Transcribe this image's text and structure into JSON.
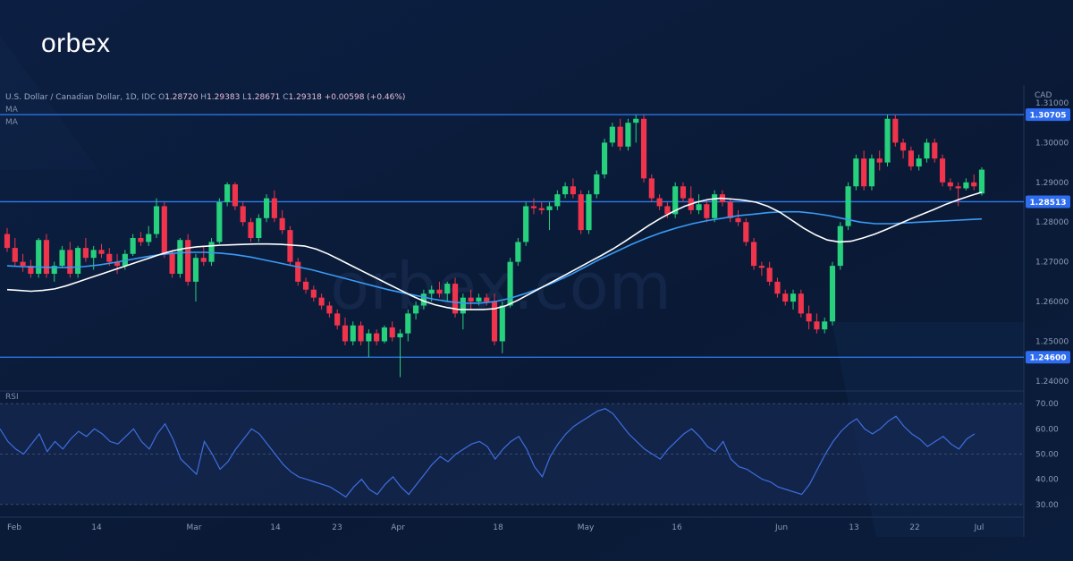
{
  "brand": {
    "logo_text": "orbex",
    "watermark": "orbex.com"
  },
  "header": {
    "symbol": "U.S. Dollar / Canadian Dollar, 1D, IDC",
    "open_label": "O",
    "open": "1.28720",
    "high_label": "H",
    "high": "1.29383",
    "low_label": "L",
    "low": "1.28671",
    "close_label": "C",
    "close": "1.29318",
    "change": "+0.00598 (+0.46%)"
  },
  "indicators": {
    "ma1_label": "MA",
    "ma2_label": "MA",
    "rsi_label": "RSI"
  },
  "colors": {
    "background": "#0b1c3a",
    "bull": "#26d07c",
    "bear": "#f0344c",
    "ma_fast": "#ffffff",
    "ma_slow": "#3a9bf4",
    "level_line": "#2f7cf0",
    "rsi_line": "#3d6fe0"
  },
  "chart_data": [
    {
      "type": "candlestick",
      "currency": "CAD",
      "ylim": [
        1.2375,
        1.3145
      ],
      "y_ticks": [
        "1.31000",
        "1.30000",
        "1.29000",
        "1.28000",
        "1.27000",
        "1.26000",
        "1.25000",
        "1.24000"
      ],
      "x_ticks": [
        "Feb",
        "14",
        "Mar",
        "14",
        "23",
        "Apr",
        "18",
        "May",
        "16",
        "Jun",
        "13",
        "22",
        "Jul"
      ],
      "levels": [
        {
          "value": 1.30705,
          "label": "1.30705"
        },
        {
          "value": 1.28513,
          "label": "1.28513"
        },
        {
          "value": 1.246,
          "label": "1.24600"
        }
      ],
      "candles": [
        [
          1.277,
          1.2785,
          1.2725,
          1.2735
        ],
        [
          1.2735,
          1.276,
          1.269,
          1.27
        ],
        [
          1.27,
          1.272,
          1.2675,
          1.269
        ],
        [
          1.269,
          1.2705,
          1.266,
          1.267
        ],
        [
          1.267,
          1.276,
          1.266,
          1.2755
        ],
        [
          1.2755,
          1.277,
          1.266,
          1.267
        ],
        [
          1.267,
          1.27,
          1.265,
          1.269
        ],
        [
          1.269,
          1.274,
          1.2685,
          1.273
        ],
        [
          1.273,
          1.275,
          1.266,
          1.267
        ],
        [
          1.267,
          1.274,
          1.266,
          1.2735
        ],
        [
          1.2735,
          1.276,
          1.27,
          1.271
        ],
        [
          1.271,
          1.274,
          1.268,
          1.273
        ],
        [
          1.273,
          1.2745,
          1.271,
          1.272
        ],
        [
          1.272,
          1.2735,
          1.269,
          1.27
        ],
        [
          1.27,
          1.272,
          1.267,
          1.269
        ],
        [
          1.269,
          1.273,
          1.268,
          1.272
        ],
        [
          1.272,
          1.277,
          1.2715,
          1.276
        ],
        [
          1.276,
          1.2775,
          1.274,
          1.275
        ],
        [
          1.275,
          1.279,
          1.274,
          1.277
        ],
        [
          1.277,
          1.286,
          1.276,
          1.284
        ],
        [
          1.284,
          1.285,
          1.271,
          1.272
        ],
        [
          1.272,
          1.273,
          1.266,
          1.267
        ],
        [
          1.267,
          1.276,
          1.266,
          1.2755
        ],
        [
          1.2755,
          1.277,
          1.264,
          1.265
        ],
        [
          1.265,
          1.272,
          1.26,
          1.271
        ],
        [
          1.271,
          1.274,
          1.269,
          1.27
        ],
        [
          1.27,
          1.276,
          1.269,
          1.275
        ],
        [
          1.275,
          1.286,
          1.2745,
          1.285
        ],
        [
          1.285,
          1.29,
          1.284,
          1.2895
        ],
        [
          1.2895,
          1.29,
          1.283,
          1.284
        ],
        [
          1.284,
          1.285,
          1.279,
          1.28
        ],
        [
          1.28,
          1.281,
          1.275,
          1.276
        ],
        [
          1.276,
          1.282,
          1.275,
          1.281
        ],
        [
          1.281,
          1.287,
          1.28,
          1.286
        ],
        [
          1.286,
          1.288,
          1.28,
          1.281
        ],
        [
          1.281,
          1.283,
          1.277,
          1.278
        ],
        [
          1.278,
          1.279,
          1.269,
          1.27
        ],
        [
          1.27,
          1.271,
          1.264,
          1.265
        ],
        [
          1.265,
          1.266,
          1.262,
          1.263
        ],
        [
          1.263,
          1.264,
          1.26,
          1.261
        ],
        [
          1.261,
          1.262,
          1.258,
          1.259
        ],
        [
          1.259,
          1.26,
          1.256,
          1.257
        ],
        [
          1.257,
          1.258,
          1.253,
          1.254
        ],
        [
          1.254,
          1.256,
          1.249,
          1.25
        ],
        [
          1.25,
          1.255,
          1.249,
          1.254
        ],
        [
          1.254,
          1.255,
          1.249,
          1.25
        ],
        [
          1.25,
          1.253,
          1.246,
          1.252
        ],
        [
          1.252,
          1.253,
          1.249,
          1.25
        ],
        [
          1.25,
          1.254,
          1.2495,
          1.2535
        ],
        [
          1.2535,
          1.255,
          1.25,
          1.251
        ],
        [
          1.251,
          1.253,
          1.241,
          1.252
        ],
        [
          1.252,
          1.258,
          1.25,
          1.257
        ],
        [
          1.257,
          1.26,
          1.2555,
          1.259
        ],
        [
          1.259,
          1.263,
          1.258,
          1.262
        ],
        [
          1.262,
          1.264,
          1.26,
          1.263
        ],
        [
          1.263,
          1.265,
          1.261,
          1.262
        ],
        [
          1.262,
          1.265,
          1.26,
          1.2645
        ],
        [
          1.2645,
          1.266,
          1.256,
          1.257
        ],
        [
          1.257,
          1.262,
          1.253,
          1.261
        ],
        [
          1.261,
          1.263,
          1.258,
          1.26
        ],
        [
          1.26,
          1.262,
          1.259,
          1.261
        ],
        [
          1.261,
          1.262,
          1.259,
          1.26
        ],
        [
          1.26,
          1.262,
          1.249,
          1.25
        ],
        [
          1.25,
          1.26,
          1.247,
          1.259
        ],
        [
          1.259,
          1.271,
          1.2585,
          1.27
        ],
        [
          1.27,
          1.276,
          1.269,
          1.275
        ],
        [
          1.275,
          1.285,
          1.274,
          1.284
        ],
        [
          1.284,
          1.286,
          1.282,
          1.2835
        ],
        [
          1.2835,
          1.285,
          1.282,
          1.283
        ],
        [
          1.283,
          1.285,
          1.278,
          1.284
        ],
        [
          1.284,
          1.288,
          1.283,
          1.287
        ],
        [
          1.287,
          1.29,
          1.286,
          1.289
        ],
        [
          1.289,
          1.291,
          1.286,
          1.287
        ],
        [
          1.287,
          1.288,
          1.277,
          1.278
        ],
        [
          1.278,
          1.288,
          1.277,
          1.287
        ],
        [
          1.287,
          1.293,
          1.286,
          1.292
        ],
        [
          1.292,
          1.301,
          1.291,
          1.3
        ],
        [
          1.3,
          1.305,
          1.299,
          1.304
        ],
        [
          1.304,
          1.306,
          1.298,
          1.299
        ],
        [
          1.299,
          1.306,
          1.298,
          1.305
        ],
        [
          1.305,
          1.307,
          1.3,
          1.306
        ],
        [
          1.306,
          1.307,
          1.29,
          1.291
        ],
        [
          1.291,
          1.292,
          1.285,
          1.286
        ],
        [
          1.286,
          1.287,
          1.283,
          1.284
        ],
        [
          1.284,
          1.285,
          1.281,
          1.282
        ],
        [
          1.282,
          1.29,
          1.281,
          1.289
        ],
        [
          1.289,
          1.29,
          1.285,
          1.286
        ],
        [
          1.286,
          1.289,
          1.282,
          1.283
        ],
        [
          1.283,
          1.287,
          1.282,
          1.2845
        ],
        [
          1.2845,
          1.2855,
          1.28,
          1.281
        ],
        [
          1.281,
          1.288,
          1.28,
          1.287
        ],
        [
          1.287,
          1.288,
          1.284,
          1.285
        ],
        [
          1.285,
          1.286,
          1.28,
          1.281
        ],
        [
          1.281,
          1.283,
          1.279,
          1.28
        ],
        [
          1.28,
          1.281,
          1.274,
          1.275
        ],
        [
          1.275,
          1.276,
          1.268,
          1.269
        ],
        [
          1.269,
          1.27,
          1.2665,
          1.2685
        ],
        [
          1.2685,
          1.27,
          1.264,
          1.265
        ],
        [
          1.265,
          1.266,
          1.261,
          1.262
        ],
        [
          1.262,
          1.263,
          1.259,
          1.26
        ],
        [
          1.26,
          1.263,
          1.258,
          1.262
        ],
        [
          1.262,
          1.263,
          1.256,
          1.257
        ],
        [
          1.257,
          1.259,
          1.253,
          1.255
        ],
        [
          1.255,
          1.257,
          1.252,
          1.253
        ],
        [
          1.253,
          1.256,
          1.252,
          1.255
        ],
        [
          1.255,
          1.27,
          1.254,
          1.269
        ],
        [
          1.269,
          1.28,
          1.268,
          1.279
        ],
        [
          1.279,
          1.29,
          1.278,
          1.289
        ],
        [
          1.289,
          1.297,
          1.288,
          1.296
        ],
        [
          1.296,
          1.298,
          1.288,
          1.289
        ],
        [
          1.289,
          1.297,
          1.288,
          1.296
        ],
        [
          1.296,
          1.298,
          1.293,
          1.295
        ],
        [
          1.295,
          1.307,
          1.294,
          1.306
        ],
        [
          1.306,
          1.307,
          1.299,
          1.3
        ],
        [
          1.3,
          1.301,
          1.296,
          1.298
        ],
        [
          1.298,
          1.299,
          1.293,
          1.294
        ],
        [
          1.294,
          1.297,
          1.293,
          1.296
        ],
        [
          1.296,
          1.301,
          1.295,
          1.3
        ],
        [
          1.3,
          1.301,
          1.295,
          1.296
        ],
        [
          1.296,
          1.297,
          1.289,
          1.29
        ],
        [
          1.29,
          1.291,
          1.288,
          1.289
        ],
        [
          1.289,
          1.29,
          1.284,
          1.2885
        ],
        [
          1.2885,
          1.291,
          1.288,
          1.29
        ],
        [
          1.29,
          1.292,
          1.288,
          1.289
        ],
        [
          1.2872,
          1.2938,
          1.2867,
          1.2932
        ]
      ],
      "ma_fast": [
        1.263,
        1.2628,
        1.2626,
        1.2628,
        1.2632,
        1.264,
        1.265,
        1.266,
        1.267,
        1.268,
        1.269,
        1.27,
        1.271,
        1.272,
        1.2728,
        1.2734,
        1.2738,
        1.274,
        1.2742,
        1.2743,
        1.2744,
        1.2745,
        1.2745,
        1.2744,
        1.2742,
        1.274,
        1.2732,
        1.272,
        1.2705,
        1.269,
        1.2675,
        1.266,
        1.2645,
        1.263,
        1.2615,
        1.2602,
        1.2592,
        1.2585,
        1.258,
        1.258,
        1.258,
        1.2582,
        1.259,
        1.2604,
        1.262,
        1.2636,
        1.2652,
        1.2668,
        1.2684,
        1.27,
        1.2716,
        1.2733,
        1.2752,
        1.2772,
        1.2792,
        1.281,
        1.2826,
        1.284,
        1.285,
        1.2857,
        1.286,
        1.2858,
        1.2855,
        1.285,
        1.284,
        1.2825,
        1.2805,
        1.2785,
        1.2768,
        1.2755,
        1.275,
        1.2752,
        1.276,
        1.277,
        1.2782,
        1.2795,
        1.2808,
        1.282,
        1.2832,
        1.2845,
        1.2856,
        1.2866,
        1.2875
      ],
      "ma_fast_start": 0,
      "ma_slow": [
        1.269,
        1.2688,
        1.2687,
        1.2686,
        1.2686,
        1.2688,
        1.2692,
        1.2698,
        1.2705,
        1.2712,
        1.2718,
        1.2722,
        1.2724,
        1.2724,
        1.2722,
        1.2718,
        1.2712,
        1.2704,
        1.2696,
        1.2688,
        1.268,
        1.267,
        1.266,
        1.265,
        1.264,
        1.263,
        1.2622,
        1.2614,
        1.2606,
        1.26,
        1.2596,
        1.2596,
        1.26,
        1.2608,
        1.262,
        1.2634,
        1.265,
        1.2668,
        1.2688,
        1.2708,
        1.2726,
        1.2744,
        1.276,
        1.2774,
        1.2786,
        1.2796,
        1.2804,
        1.281,
        1.2816,
        1.282,
        1.2824,
        1.2826,
        1.2826,
        1.2822,
        1.2816,
        1.2808,
        1.28,
        1.2796,
        1.2796,
        1.2798,
        1.28,
        1.2802,
        1.2804,
        1.2806,
        1.2808
      ],
      "ma_slow_start": 0
    },
    {
      "type": "line",
      "name": "RSI",
      "ylim": [
        25,
        75
      ],
      "y_ticks": [
        "70.00",
        "60.00",
        "50.00",
        "40.00",
        "30.00"
      ],
      "values": [
        60,
        55,
        52,
        50,
        54,
        58,
        51,
        55,
        52,
        56,
        59,
        57,
        60,
        58,
        55,
        54,
        57,
        60,
        55,
        52,
        58,
        62,
        56,
        48,
        45,
        42,
        55,
        50,
        44,
        47,
        52,
        56,
        60,
        58,
        54,
        50,
        46,
        43,
        41,
        40,
        39,
        38,
        37,
        35,
        33,
        37,
        40,
        36,
        34,
        38,
        41,
        37,
        34,
        38,
        42,
        46,
        49,
        47,
        50,
        52,
        54,
        55,
        53,
        48,
        52,
        55,
        57,
        52,
        45,
        41,
        49,
        54,
        58,
        61,
        63,
        65,
        67,
        68,
        66,
        62,
        58,
        55,
        52,
        50,
        48,
        52,
        55,
        58,
        60,
        57,
        53,
        51,
        55,
        48,
        45,
        44,
        42,
        40,
        39,
        37,
        36,
        35,
        34,
        38,
        44,
        50,
        55,
        59,
        62,
        64,
        60,
        58,
        60,
        63,
        65,
        61,
        58,
        56,
        53,
        55,
        57,
        54,
        52,
        56,
        58
      ],
      "start": 0
    }
  ]
}
